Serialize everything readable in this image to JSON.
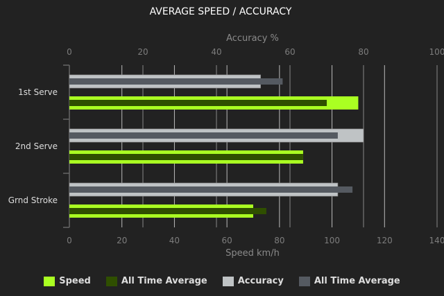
{
  "chart_data": {
    "type": "bar",
    "orientation": "horizontal",
    "title": "AVERAGE SPEED / ACCURACY",
    "categories": [
      "1st Serve",
      "2nd Serve",
      "Grnd Stroke"
    ],
    "top_axis": {
      "label": "Accuracy %",
      "range": [
        0,
        100
      ],
      "ticks": [
        0,
        20,
        40,
        60,
        80,
        100
      ]
    },
    "bottom_axis": {
      "label": "Speed km/h",
      "range": [
        0,
        140
      ],
      "ticks": [
        0,
        20,
        40,
        60,
        80,
        100,
        120,
        140
      ]
    },
    "grid": true,
    "legend_position": "bottom",
    "series": [
      {
        "name": "Speed",
        "axis": "bottom",
        "color": "#aaff22",
        "values": [
          110,
          89,
          70
        ]
      },
      {
        "name": "All Time Average",
        "axis": "bottom",
        "color": "#2f4f00",
        "values": [
          98,
          89,
          75
        ]
      },
      {
        "name": "Accuracy",
        "axis": "top",
        "color": "#bfc3c5",
        "values": [
          52,
          80,
          73
        ]
      },
      {
        "name": "All Time Average",
        "axis": "top",
        "color": "#555a61",
        "values": [
          58,
          73,
          77
        ]
      }
    ]
  }
}
